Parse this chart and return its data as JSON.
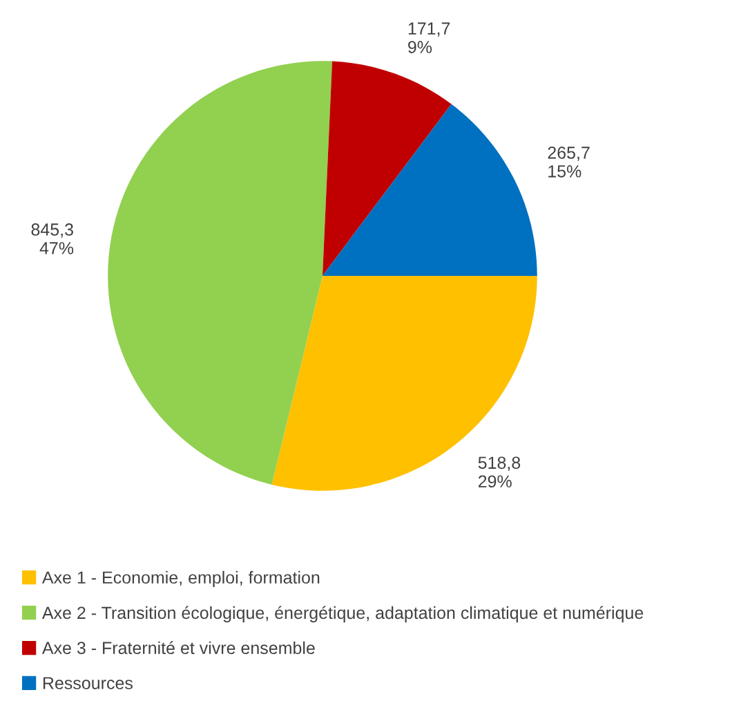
{
  "chart_data": {
    "type": "pie",
    "categories": [
      "Axe 1 - Economie, emploi, formation",
      "Axe 2 - Transition écologique, énergétique, adaptation climatique et numérique",
      "Axe 3 - Fraternité et vivre ensemble",
      "Ressources"
    ],
    "values": [
      518.8,
      845.3,
      171.7,
      265.7
    ],
    "colors": [
      "#ffc000",
      "#92d050",
      "#c00000",
      "#0070c0"
    ],
    "value_labels": [
      "518,8\n29%",
      "845,3\n47%",
      "171,7\n9%",
      "265,7\n15%"
    ],
    "legend": "bottom"
  }
}
